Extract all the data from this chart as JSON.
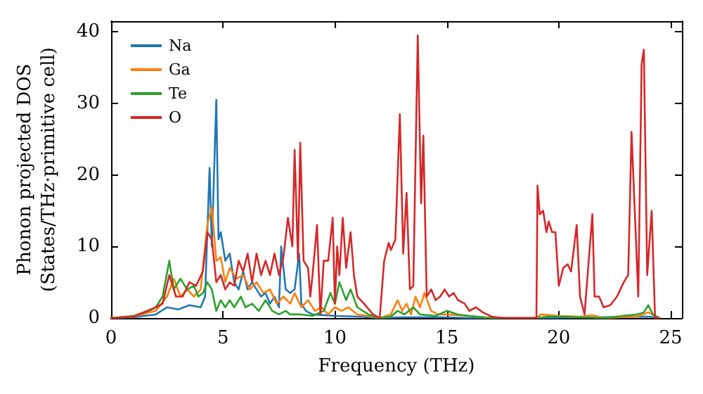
{
  "chart_data": {
    "type": "line",
    "xlabel": "Frequency (THz)",
    "ylabel": "Phonon projected DOS\n(States/THz·primitive cell)",
    "xlim": [
      0,
      25.5
    ],
    "xticks": [
      0,
      5,
      10,
      15,
      20,
      25
    ],
    "ylim": [
      0,
      41.5
    ],
    "yticks": [
      0,
      10,
      20,
      30,
      40
    ],
    "grid": false,
    "legend": "top left",
    "marker": "none",
    "line_style": "solid",
    "series": [
      {
        "name": "Na",
        "color": "#1f77b4",
        "x": [
          0,
          1,
          2,
          2.5,
          3,
          3.5,
          4,
          4.2,
          4.4,
          4.5,
          4.7,
          4.8,
          4.9,
          5.1,
          5.3,
          5.5,
          5.7,
          5.9,
          6.1,
          6.3,
          6.5,
          6.7,
          6.9,
          7.1,
          7.3,
          7.5,
          7.6,
          7.8,
          8.0,
          8.2,
          8.4,
          8.5,
          8.7,
          9,
          10,
          11,
          12,
          13,
          14,
          15,
          16,
          19,
          24,
          24.5
        ],
        "values": [
          0,
          0.1,
          0.5,
          1.5,
          1.2,
          1.8,
          1.5,
          3,
          21,
          10,
          30.5,
          11,
          12,
          8,
          9,
          5,
          4,
          6.5,
          4,
          5,
          4,
          3,
          3.5,
          2,
          3,
          1.5,
          10,
          4,
          3.5,
          4,
          9,
          2,
          1,
          0.5,
          0.3,
          0.2,
          0,
          0.1,
          0.1,
          0.1,
          0,
          0,
          0.2,
          0
        ]
      },
      {
        "name": "Ga",
        "color": "#ff7f0e",
        "x": [
          0,
          1,
          2,
          2.5,
          2.8,
          3.1,
          3.4,
          3.7,
          4,
          4.3,
          4.5,
          4.7,
          4.9,
          5.1,
          5.3,
          5.6,
          5.9,
          6.2,
          6.5,
          6.8,
          7.1,
          7.4,
          7.7,
          8,
          8.2,
          8.5,
          8.8,
          9.1,
          9.4,
          9.7,
          10,
          10.3,
          10.6,
          11,
          11.5,
          12,
          12.5,
          12.8,
          13,
          13.2,
          13.4,
          13.6,
          13.8,
          14,
          14.3,
          14.6,
          15,
          16,
          17,
          19,
          19.2,
          20,
          21,
          21.5,
          22,
          23.5,
          24,
          24.3
        ],
        "values": [
          0,
          0.2,
          1,
          3,
          5.5,
          3,
          4,
          3,
          4,
          13,
          15.5,
          8,
          8.5,
          5,
          7,
          5.5,
          6,
          4,
          5,
          3.5,
          4,
          2,
          3,
          2,
          3.5,
          1.5,
          2.5,
          1,
          1.5,
          0.5,
          1.5,
          1,
          1.5,
          0.5,
          0.3,
          0,
          0.5,
          2.5,
          1,
          2,
          0.5,
          3,
          1.5,
          3.5,
          1,
          0.5,
          0.5,
          0.3,
          0,
          0,
          0.5,
          0.3,
          0.2,
          0.4,
          0,
          0.2,
          0.8,
          0.3
        ]
      },
      {
        "name": "Te",
        "color": "#2ca02c",
        "x": [
          0,
          1,
          1.7,
          2,
          2.3,
          2.6,
          2.8,
          3.1,
          3.4,
          3.7,
          3.9,
          4.1,
          4.3,
          4.5,
          4.7,
          4.9,
          5.1,
          5.3,
          5.5,
          5.8,
          6,
          6.3,
          6.6,
          6.9,
          7.2,
          7.5,
          7.8,
          8,
          8.5,
          9,
          9.5,
          9.8,
          10,
          10.2,
          10.5,
          10.7,
          11,
          11.5,
          12,
          12.5,
          12.8,
          13.1,
          13.5,
          13.8,
          14.5,
          15,
          15.5,
          16,
          17,
          19,
          19.5,
          20,
          21,
          22,
          23.5,
          23.8,
          24,
          24.2,
          24.5
        ],
        "values": [
          0,
          0.3,
          1,
          1.5,
          3,
          8,
          4,
          5.5,
          4,
          4.5,
          3,
          3.5,
          5,
          4,
          1,
          2.5,
          1.5,
          2.5,
          1.5,
          3,
          1.5,
          2,
          1,
          2.5,
          1,
          0.5,
          1,
          0.5,
          0.5,
          0.3,
          1,
          3.5,
          2,
          5,
          2.5,
          4,
          1.5,
          0.5,
          0,
          0.2,
          1,
          0.5,
          1.5,
          0.5,
          0.3,
          1,
          0.5,
          0.3,
          0,
          0,
          0.2,
          0.2,
          0.1,
          0,
          0.5,
          0.8,
          1.8,
          0.5,
          0
        ]
      },
      {
        "name": "O",
        "color": "#d62728",
        "x": [
          0,
          1,
          2,
          2.3,
          2.6,
          2.9,
          3.2,
          3.5,
          3.8,
          4.1,
          4.3,
          4.5,
          4.7,
          4.9,
          5.1,
          5.3,
          5.5,
          5.7,
          5.9,
          6.1,
          6.3,
          6.5,
          6.7,
          6.9,
          7.1,
          7.3,
          7.5,
          7.7,
          7.9,
          8.0,
          8.1,
          8.2,
          8.35,
          8.45,
          8.6,
          8.8,
          8.9,
          9,
          9.2,
          9.35,
          9.5,
          9.7,
          9.9,
          10,
          10.1,
          10.2,
          10.35,
          10.5,
          10.7,
          10.85,
          11,
          11.3,
          11.7,
          12,
          12.2,
          12.4,
          12.5,
          12.7,
          12.9,
          13.05,
          13.2,
          13.35,
          13.5,
          13.7,
          13.85,
          13.95,
          14.1,
          14.3,
          14.5,
          14.7,
          14.9,
          15.1,
          15.3,
          15.5,
          15.8,
          16,
          16.3,
          16.6,
          17,
          17.5,
          19,
          19.05,
          19.15,
          19.3,
          19.45,
          19.55,
          19.7,
          19.85,
          20,
          20.2,
          20.4,
          20.55,
          20.8,
          20.95,
          21.15,
          21.5,
          21.6,
          21.8,
          22,
          22.3,
          22.6,
          22.9,
          23.1,
          23.25,
          23.55,
          23.7,
          23.8,
          23.95,
          24.15,
          24.3,
          24.5
        ],
        "values": [
          0,
          0.2,
          1.5,
          2,
          6,
          3,
          3,
          5,
          4.5,
          6.5,
          12,
          11,
          5,
          6,
          4,
          5,
          4.5,
          8,
          6.5,
          9,
          5,
          9,
          6,
          8,
          6,
          9,
          6,
          8.5,
          14,
          12,
          10,
          23.5,
          8,
          24.5,
          8,
          7,
          3,
          6,
          13,
          0.5,
          8,
          8,
          14,
          2,
          10,
          6,
          14,
          7,
          12,
          6,
          3,
          2,
          0.5,
          0,
          8,
          10.5,
          9.5,
          11,
          28.5,
          9,
          17.5,
          4,
          4.5,
          39.5,
          16,
          25.5,
          3,
          4,
          2.5,
          3,
          4,
          3,
          3.5,
          2.5,
          2,
          1,
          1.5,
          0.8,
          0.2,
          0,
          0,
          18.5,
          14.5,
          15,
          12,
          13.5,
          12,
          12,
          4.5,
          7,
          7.5,
          6.5,
          13,
          3,
          0.5,
          14.5,
          3,
          3,
          1.5,
          1.8,
          3,
          5,
          6,
          26,
          3,
          35.5,
          37.5,
          6,
          15,
          0,
          0
        ]
      }
    ]
  }
}
